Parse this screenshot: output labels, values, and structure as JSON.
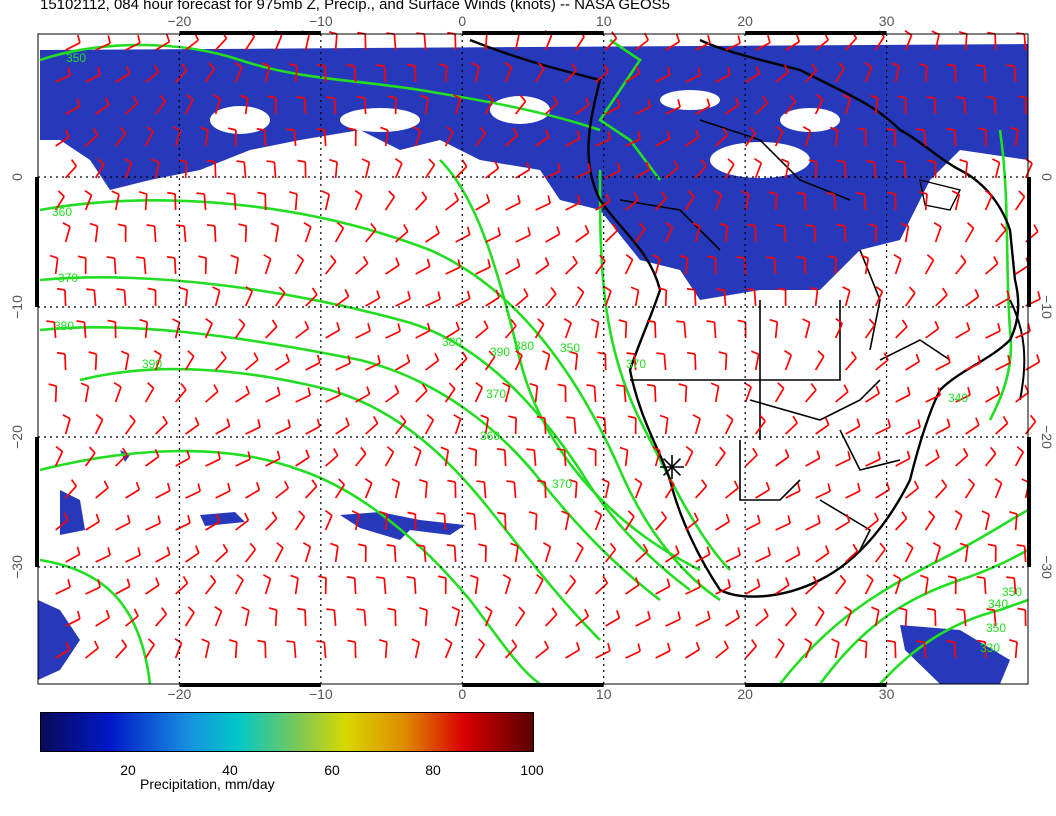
{
  "title": "15102112, 084 hour forecast for 975mb Z, Precip., and Surface Winds (knots) -- NASA GEOS5",
  "axes": {
    "top_lon_labels": [
      "−20",
      "−10",
      "0",
      "10",
      "20",
      "30"
    ],
    "bottom_lon_labels": [
      "−20",
      "−10",
      "0",
      "10",
      "20",
      "30"
    ],
    "left_lat_labels": [
      "0",
      "−10",
      "−20",
      "−30"
    ],
    "right_lat_labels": [
      "0",
      "−10",
      "−20",
      "−30"
    ],
    "lon_range": [
      -30,
      40
    ],
    "lat_range": [
      11,
      -39
    ]
  },
  "map_layers": {
    "precip_color": "#1428b4",
    "contour_color": "#22dd22",
    "wind_barb_color": "#ff0000",
    "coastline_color": "#000000",
    "grid_style": "dotted"
  },
  "contour_labels": [
    "350",
    "360",
    "370",
    "380",
    "390",
    "380",
    "390",
    "380",
    "370",
    "360",
    "370",
    "350",
    "370",
    "340",
    "350",
    "330",
    "350",
    "340"
  ],
  "marker_icon": "asterisk-marker",
  "colorbar": {
    "ticks": [
      "20",
      "40",
      "60",
      "80",
      "100"
    ],
    "label": "Precipitation, mm/day",
    "range": [
      0,
      100
    ]
  }
}
